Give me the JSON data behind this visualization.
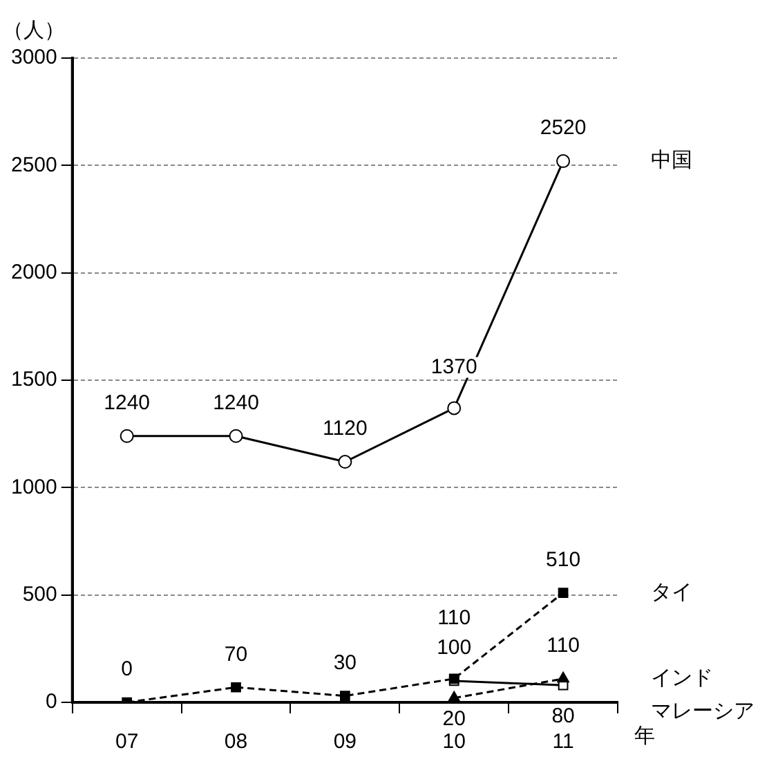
{
  "chart_data": {
    "type": "line",
    "ylabel": "（人）",
    "xlabel": "年",
    "categories": [
      "07",
      "08",
      "09",
      "10",
      "11"
    ],
    "series": [
      {
        "name": "中国",
        "color": "#000000",
        "marker": "circle",
        "line_style": "solid",
        "values": [
          1240,
          1240,
          1120,
          1370,
          2520
        ]
      },
      {
        "name": "タイ",
        "color": "#000000",
        "marker": "square",
        "line_style": "dashed",
        "values": [
          0,
          70,
          30,
          110,
          510
        ]
      },
      {
        "name": "インド",
        "color": "#000000",
        "marker": "triangle",
        "line_style": "dashed",
        "values": [
          null,
          null,
          null,
          20,
          110
        ]
      },
      {
        "name": "マレーシア",
        "color": "#000000",
        "marker": "square",
        "line_style": "solid",
        "values": [
          null,
          null,
          null,
          100,
          80
        ]
      }
    ],
    "ylim": [
      0,
      3000
    ],
    "yticks": [
      0,
      500,
      1000,
      1500,
      2000,
      2500,
      3000
    ],
    "grid": "y",
    "legend": false,
    "data_labels": true
  }
}
